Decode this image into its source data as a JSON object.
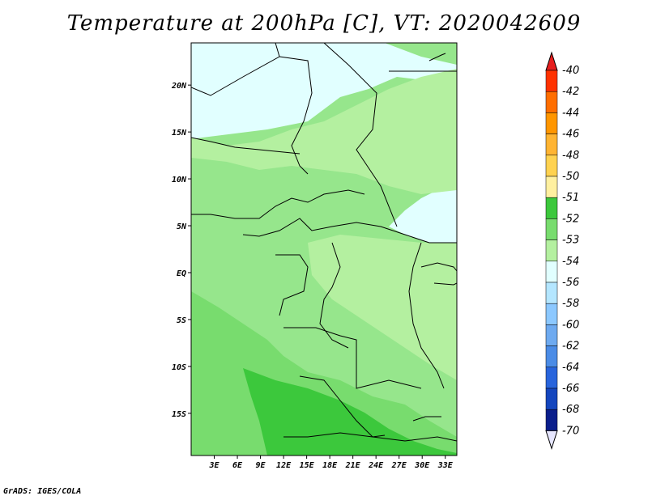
{
  "title": "Temperature at 200hPa [C], VT: 2020042609",
  "footer": "GrADS: IGES/COLA",
  "map": {
    "lon_range": [
      0,
      34.5
    ],
    "lat_range": [
      -19.5,
      24.5
    ],
    "lat_ticks": [
      {
        "value": 20,
        "label": "20N"
      },
      {
        "value": 15,
        "label": "15N"
      },
      {
        "value": 10,
        "label": "10N"
      },
      {
        "value": 5,
        "label": "5N"
      },
      {
        "value": 0,
        "label": "EQ"
      },
      {
        "value": -5,
        "label": "5S"
      },
      {
        "value": -10,
        "label": "10S"
      },
      {
        "value": -15,
        "label": "15S"
      }
    ],
    "lon_ticks": [
      {
        "value": 3,
        "label": "3E"
      },
      {
        "value": 6,
        "label": "6E"
      },
      {
        "value": 9,
        "label": "9E"
      },
      {
        "value": 12,
        "label": "12E"
      },
      {
        "value": 15,
        "label": "15E"
      },
      {
        "value": 18,
        "label": "18E"
      },
      {
        "value": 21,
        "label": "21E"
      },
      {
        "value": 24,
        "label": "24E"
      },
      {
        "value": 27,
        "label": "27E"
      },
      {
        "value": 30,
        "label": "30E"
      },
      {
        "value": 33,
        "label": "33E"
      }
    ],
    "colors": {
      "c54": "#e1ffff",
      "c53_54": "#b4f0a0",
      "c53": "#96e68c",
      "c52": "#78dc6e",
      "c51_52": "#3cc83c",
      "border": "#000000"
    }
  },
  "colorbar": {
    "top_label": "-40",
    "levels": [
      {
        "label": "-42",
        "color": "#ff3200"
      },
      {
        "label": "-44",
        "color": "#ff6e00"
      },
      {
        "label": "-46",
        "color": "#ff9600"
      },
      {
        "label": "-48",
        "color": "#ffb432"
      },
      {
        "label": "-50",
        "color": "#ffd250"
      },
      {
        "label": "-51",
        "color": "#fff0a0"
      },
      {
        "label": "-52",
        "color": "#3cc83c"
      },
      {
        "label": "-53",
        "color": "#78dc6e"
      },
      {
        "label": "-54",
        "color": "#b4f0a0"
      },
      {
        "label": "-56",
        "color": "#e1ffff"
      },
      {
        "label": "-58",
        "color": "#b4e6ff"
      },
      {
        "label": "-60",
        "color": "#8cc8ff"
      },
      {
        "label": "-62",
        "color": "#6eaaf0"
      },
      {
        "label": "-64",
        "color": "#4b8ce6"
      },
      {
        "label": "-66",
        "color": "#2864dc"
      },
      {
        "label": "-68",
        "color": "#1446be"
      },
      {
        "label": "-70",
        "color": "#0a1e8c"
      }
    ],
    "top_color": "#e61e1e",
    "bottom_color": "#e6e6ff",
    "bottom_top_color": "#1e1e6e"
  }
}
